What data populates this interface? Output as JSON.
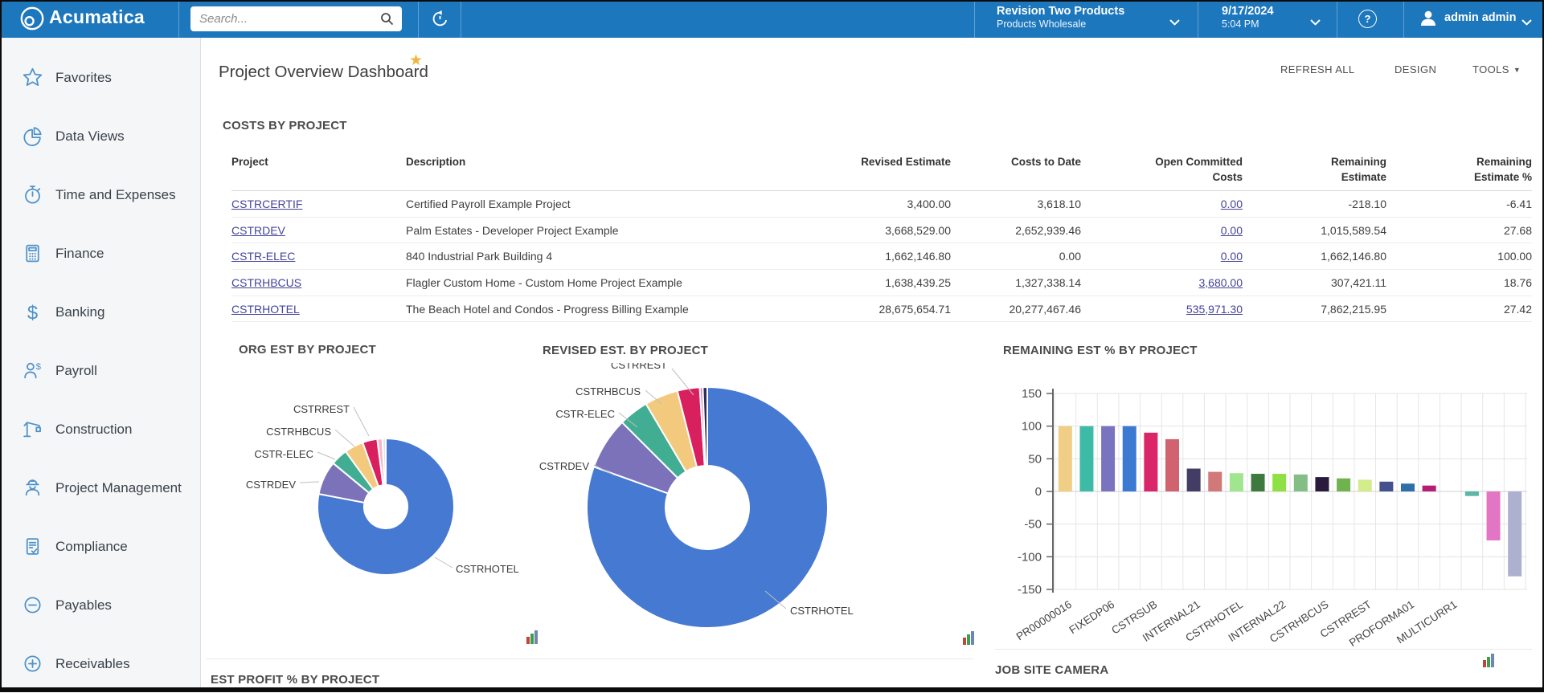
{
  "topbar": {
    "brand": "Acumatica",
    "search": {
      "placeholder": "Search..."
    },
    "company": {
      "name": "Revision Two Products",
      "branch": "Products Wholesale"
    },
    "clock": {
      "date": "9/17/2024",
      "time": "5:04 PM"
    },
    "user": {
      "name": "admin admin"
    }
  },
  "sidebar": {
    "items": [
      {
        "label": "Favorites",
        "icon": "star-icon"
      },
      {
        "label": "Data Views",
        "icon": "pie-chart-icon"
      },
      {
        "label": "Time and Expenses",
        "icon": "stopwatch-icon"
      },
      {
        "label": "Finance",
        "icon": "calculator-icon"
      },
      {
        "label": "Banking",
        "icon": "dollar-icon"
      },
      {
        "label": "Payroll",
        "icon": "payroll-icon"
      },
      {
        "label": "Construction",
        "icon": "crane-icon"
      },
      {
        "label": "Project Management",
        "icon": "worker-icon"
      },
      {
        "label": "Compliance",
        "icon": "clipboard-check-icon"
      },
      {
        "label": "Payables",
        "icon": "minus-circle-icon"
      },
      {
        "label": "Receivables",
        "icon": "plus-circle-icon"
      }
    ]
  },
  "page": {
    "title": "Project Overview Dashboard",
    "actions": [
      {
        "label": "REFRESH ALL"
      },
      {
        "label": "DESIGN"
      },
      {
        "label": "TOOLS"
      }
    ]
  },
  "costs_widget": {
    "title": "COSTS BY PROJECT",
    "columns": [
      {
        "lines": [
          "Project"
        ],
        "align": "left"
      },
      {
        "lines": [
          "Description"
        ],
        "align": "left"
      },
      {
        "lines": [
          "Revised Estimate"
        ],
        "align": "right"
      },
      {
        "lines": [
          "Costs to Date"
        ],
        "align": "right"
      },
      {
        "lines": [
          "Open Committed",
          "Costs"
        ],
        "align": "right"
      },
      {
        "lines": [
          "Remaining",
          "Estimate"
        ],
        "align": "right"
      },
      {
        "lines": [
          "Remaining",
          "Estimate %"
        ],
        "align": "right"
      }
    ],
    "rows": [
      [
        "CSTRCERTIF",
        "Certified Payroll Example Project",
        "3,400.00",
        "3,618.10",
        "0.00",
        "-218.10",
        "-6.41"
      ],
      [
        "CSTRDEV",
        "Palm Estates - Developer Project Example",
        "3,668,529.00",
        "2,652,939.46",
        "0.00",
        "1,015,589.54",
        "27.68"
      ],
      [
        "CSTR-ELEC",
        "840 Industrial Park Building 4",
        "1,662,146.80",
        "0.00",
        "0.00",
        "1,662,146.80",
        "100.00"
      ],
      [
        "CSTRHBCUS",
        "Flagler Custom Home - Custom Home Project Example",
        "1,638,439.25",
        "1,327,338.14",
        "3,680.00",
        "307,421.11",
        "18.76"
      ],
      [
        "CSTRHOTEL",
        "The Beach Hotel and Condos - Progress Billing Example",
        "28,675,654.71",
        "20,277,467.46",
        "535,971.30",
        "7,862,215.95",
        "27.42"
      ]
    ]
  },
  "chart_data": [
    {
      "type": "pie",
      "donut": true,
      "title": "ORG EST BY PROJECT",
      "slices": [
        {
          "label": "CSTRHOTEL",
          "pct": 78,
          "color": "#4579d2"
        },
        {
          "label": "CSTRDEV",
          "pct": 8,
          "color": "#7b72ba"
        },
        {
          "label": "CSTR-ELEC",
          "pct": 4,
          "color": "#41ad92"
        },
        {
          "label": "CSTRHBCUS",
          "pct": 4.5,
          "color": "#f3c97e"
        },
        {
          "label": "CSTRREST",
          "pct": 3.5,
          "color": "#d8205f"
        },
        {
          "label": "",
          "pct": 1.2,
          "color": "#f2b7cc"
        },
        {
          "label": "",
          "pct": 0.8,
          "color": "#dfe2ee"
        }
      ],
      "legend": "callouts"
    },
    {
      "type": "pie",
      "donut": true,
      "title": "REVISED EST. BY PROJECT",
      "slices": [
        {
          "label": "CSTRHOTEL",
          "pct": 80.5,
          "color": "#4579d2"
        },
        {
          "label": "CSTRDEV",
          "pct": 7,
          "color": "#7b72ba"
        },
        {
          "label": "CSTR-ELEC",
          "pct": 4,
          "color": "#41ad92"
        },
        {
          "label": "CSTRHBCUS",
          "pct": 4.5,
          "color": "#f3c97e"
        },
        {
          "label": "CSTRREST",
          "pct": 3,
          "color": "#d8205f"
        },
        {
          "label": "",
          "pct": 0.4,
          "color": "#e87fb0"
        },
        {
          "label": "",
          "pct": 0.6,
          "color": "#2b2f5e"
        }
      ],
      "legend": "callouts"
    },
    {
      "type": "bar",
      "title": "REMAINING EST % BY PROJECT",
      "ylim": [
        -150,
        150
      ],
      "yticks": [
        150,
        100,
        50,
        0,
        -50,
        -100,
        -150
      ],
      "grid": true,
      "x_tick_labels": [
        "PR00000016",
        "FIXEDP06",
        "CSTRSUB",
        "INTERNAL21",
        "CSTRHOTEL",
        "INTERNAL22",
        "CSTRHBCUS",
        "CSTRREST",
        "PROFORMA01",
        "MULTICURR1"
      ],
      "values": [
        100,
        100,
        100,
        100,
        90,
        80,
        35,
        30,
        28,
        27,
        27,
        26,
        22,
        20,
        18,
        15,
        12,
        9,
        0,
        -7,
        -75,
        -130
      ],
      "colors": [
        "#f0ce85",
        "#3dbba6",
        "#7a74c0",
        "#3c7ad1",
        "#da2568",
        "#d16370",
        "#433d66",
        "#d17878",
        "#9fe68f",
        "#3e7a3e",
        "#8fe044",
        "#85be85",
        "#2a1b3d",
        "#6fb34e",
        "#d3ec8c",
        "#44518f",
        "#2d6fa8",
        "#b51e72",
        "#000000",
        "#5bb8a8",
        "#e276c4",
        "#aeb0d0"
      ]
    }
  ],
  "footer_widgets": {
    "left_title": "EST PROFIT % BY PROJECT",
    "right_title": "JOB SITE CAMERA"
  }
}
